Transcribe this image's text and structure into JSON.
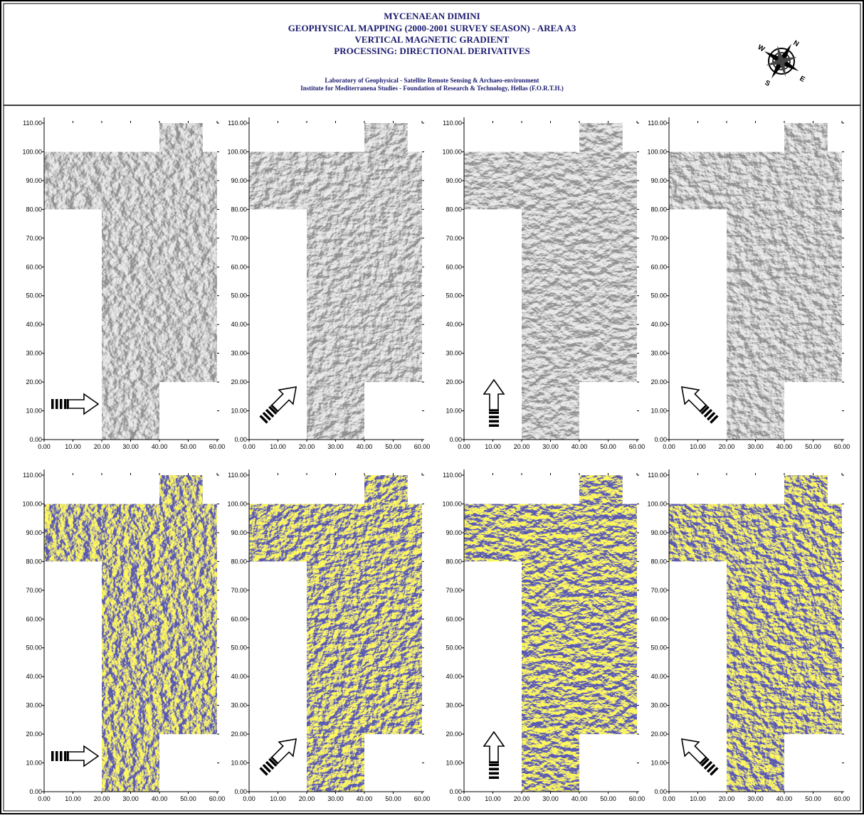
{
  "header": {
    "title_lines": [
      "MYCENAEAN DIMINI",
      "GEOPHYSICAL MAPPING (2000-2001 SURVEY SEASON) - AREA A3",
      "VERTICAL MAGNETIC GRADIENT",
      "PROCESSING:  DIRECTIONAL DERIVATIVES"
    ],
    "lab_lines": [
      "Laboratory of Geophysical - Satellite Remote Sensing & Archaeo-environment",
      "Institute for Mediterranena Studies - Foundation of Research & Technology, Hellas (F.O.R.T.H.)"
    ],
    "compass": [
      "N",
      "E",
      "S",
      "W"
    ]
  },
  "axes": {
    "xlim": [
      0,
      60
    ],
    "ylim": [
      0,
      110
    ],
    "xticks": [
      {
        "value": 0,
        "label": "0.00"
      },
      {
        "value": 10,
        "label": "10.00"
      },
      {
        "value": 20,
        "label": "20.00"
      },
      {
        "value": 30,
        "label": "30.00"
      },
      {
        "value": 40,
        "label": "40.00"
      },
      {
        "value": 50,
        "label": "50.00"
      },
      {
        "value": 60,
        "label": "60.00"
      }
    ],
    "yticks": [
      {
        "value": 0,
        "label": "0.00"
      },
      {
        "value": 10,
        "label": "10.00"
      },
      {
        "value": 20,
        "label": "20.00"
      },
      {
        "value": 30,
        "label": "30.00"
      },
      {
        "value": 40,
        "label": "40.00"
      },
      {
        "value": 50,
        "label": "50.00"
      },
      {
        "value": 60,
        "label": "60.00"
      },
      {
        "value": 70,
        "label": "70.00"
      },
      {
        "value": 80,
        "label": "80.00"
      },
      {
        "value": 90,
        "label": "90.00"
      },
      {
        "value": 100,
        "label": "100.00"
      },
      {
        "value": 110,
        "label": "110.00"
      }
    ]
  }
}
